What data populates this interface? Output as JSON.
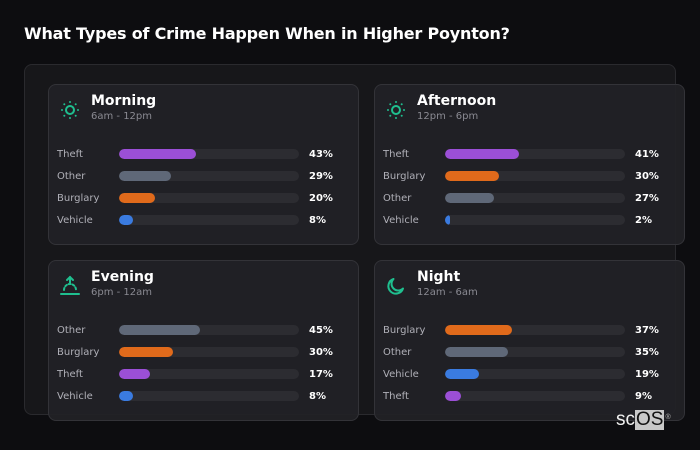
{
  "page": {
    "title": "What Types of Crime Happen When in Higher Poynton?"
  },
  "colors": {
    "Theft": "#9b4fd6",
    "Other": "#5f6878",
    "Burglary": "#e06a1b",
    "Vehicle": "#3a7be0",
    "icon_accent": "#1fbf8f"
  },
  "cards": [
    {
      "name": "Morning",
      "range": "6am - 12pm",
      "icon": "sun-icon",
      "rows": [
        {
          "label": "Theft",
          "value": 43,
          "display": "43%"
        },
        {
          "label": "Other",
          "value": 29,
          "display": "29%"
        },
        {
          "label": "Burglary",
          "value": 20,
          "display": "20%"
        },
        {
          "label": "Vehicle",
          "value": 8,
          "display": "8%"
        }
      ]
    },
    {
      "name": "Afternoon",
      "range": "12pm - 6pm",
      "icon": "sun-icon",
      "rows": [
        {
          "label": "Theft",
          "value": 41,
          "display": "41%"
        },
        {
          "label": "Burglary",
          "value": 30,
          "display": "30%"
        },
        {
          "label": "Other",
          "value": 27,
          "display": "27%"
        },
        {
          "label": "Vehicle",
          "value": 2,
          "display": "2%"
        }
      ]
    },
    {
      "name": "Evening",
      "range": "6pm - 12am",
      "icon": "sunset-icon",
      "rows": [
        {
          "label": "Other",
          "value": 45,
          "display": "45%"
        },
        {
          "label": "Burglary",
          "value": 30,
          "display": "30%"
        },
        {
          "label": "Theft",
          "value": 17,
          "display": "17%"
        },
        {
          "label": "Vehicle",
          "value": 8,
          "display": "8%"
        }
      ]
    },
    {
      "name": "Night",
      "range": "12am - 6am",
      "icon": "moon-icon",
      "rows": [
        {
          "label": "Burglary",
          "value": 37,
          "display": "37%"
        },
        {
          "label": "Other",
          "value": 35,
          "display": "35%"
        },
        {
          "label": "Vehicle",
          "value": 19,
          "display": "19%"
        },
        {
          "label": "Theft",
          "value": 9,
          "display": "9%"
        }
      ]
    }
  ],
  "logo": {
    "sc": "sc",
    "os": "OS",
    "reg": "®"
  },
  "chart_data": {
    "type": "bar",
    "title": "What Types of Crime Happen When in Higher Poynton?",
    "orientation": "horizontal",
    "unit": "%",
    "xlim": [
      0,
      100
    ],
    "panels": [
      {
        "title": "Morning",
        "subtitle": "6am - 12pm",
        "categories": [
          "Theft",
          "Other",
          "Burglary",
          "Vehicle"
        ],
        "values": [
          43,
          29,
          20,
          8
        ]
      },
      {
        "title": "Afternoon",
        "subtitle": "12pm - 6pm",
        "categories": [
          "Theft",
          "Burglary",
          "Other",
          "Vehicle"
        ],
        "values": [
          41,
          30,
          27,
          2
        ]
      },
      {
        "title": "Evening",
        "subtitle": "6pm - 12am",
        "categories": [
          "Other",
          "Burglary",
          "Theft",
          "Vehicle"
        ],
        "values": [
          45,
          30,
          17,
          8
        ]
      },
      {
        "title": "Night",
        "subtitle": "12am - 6am",
        "categories": [
          "Burglary",
          "Other",
          "Vehicle",
          "Theft"
        ],
        "values": [
          37,
          35,
          19,
          9
        ]
      }
    ],
    "series_colors": {
      "Theft": "#9b4fd6",
      "Other": "#5f6878",
      "Burglary": "#e06a1b",
      "Vehicle": "#3a7be0"
    }
  }
}
